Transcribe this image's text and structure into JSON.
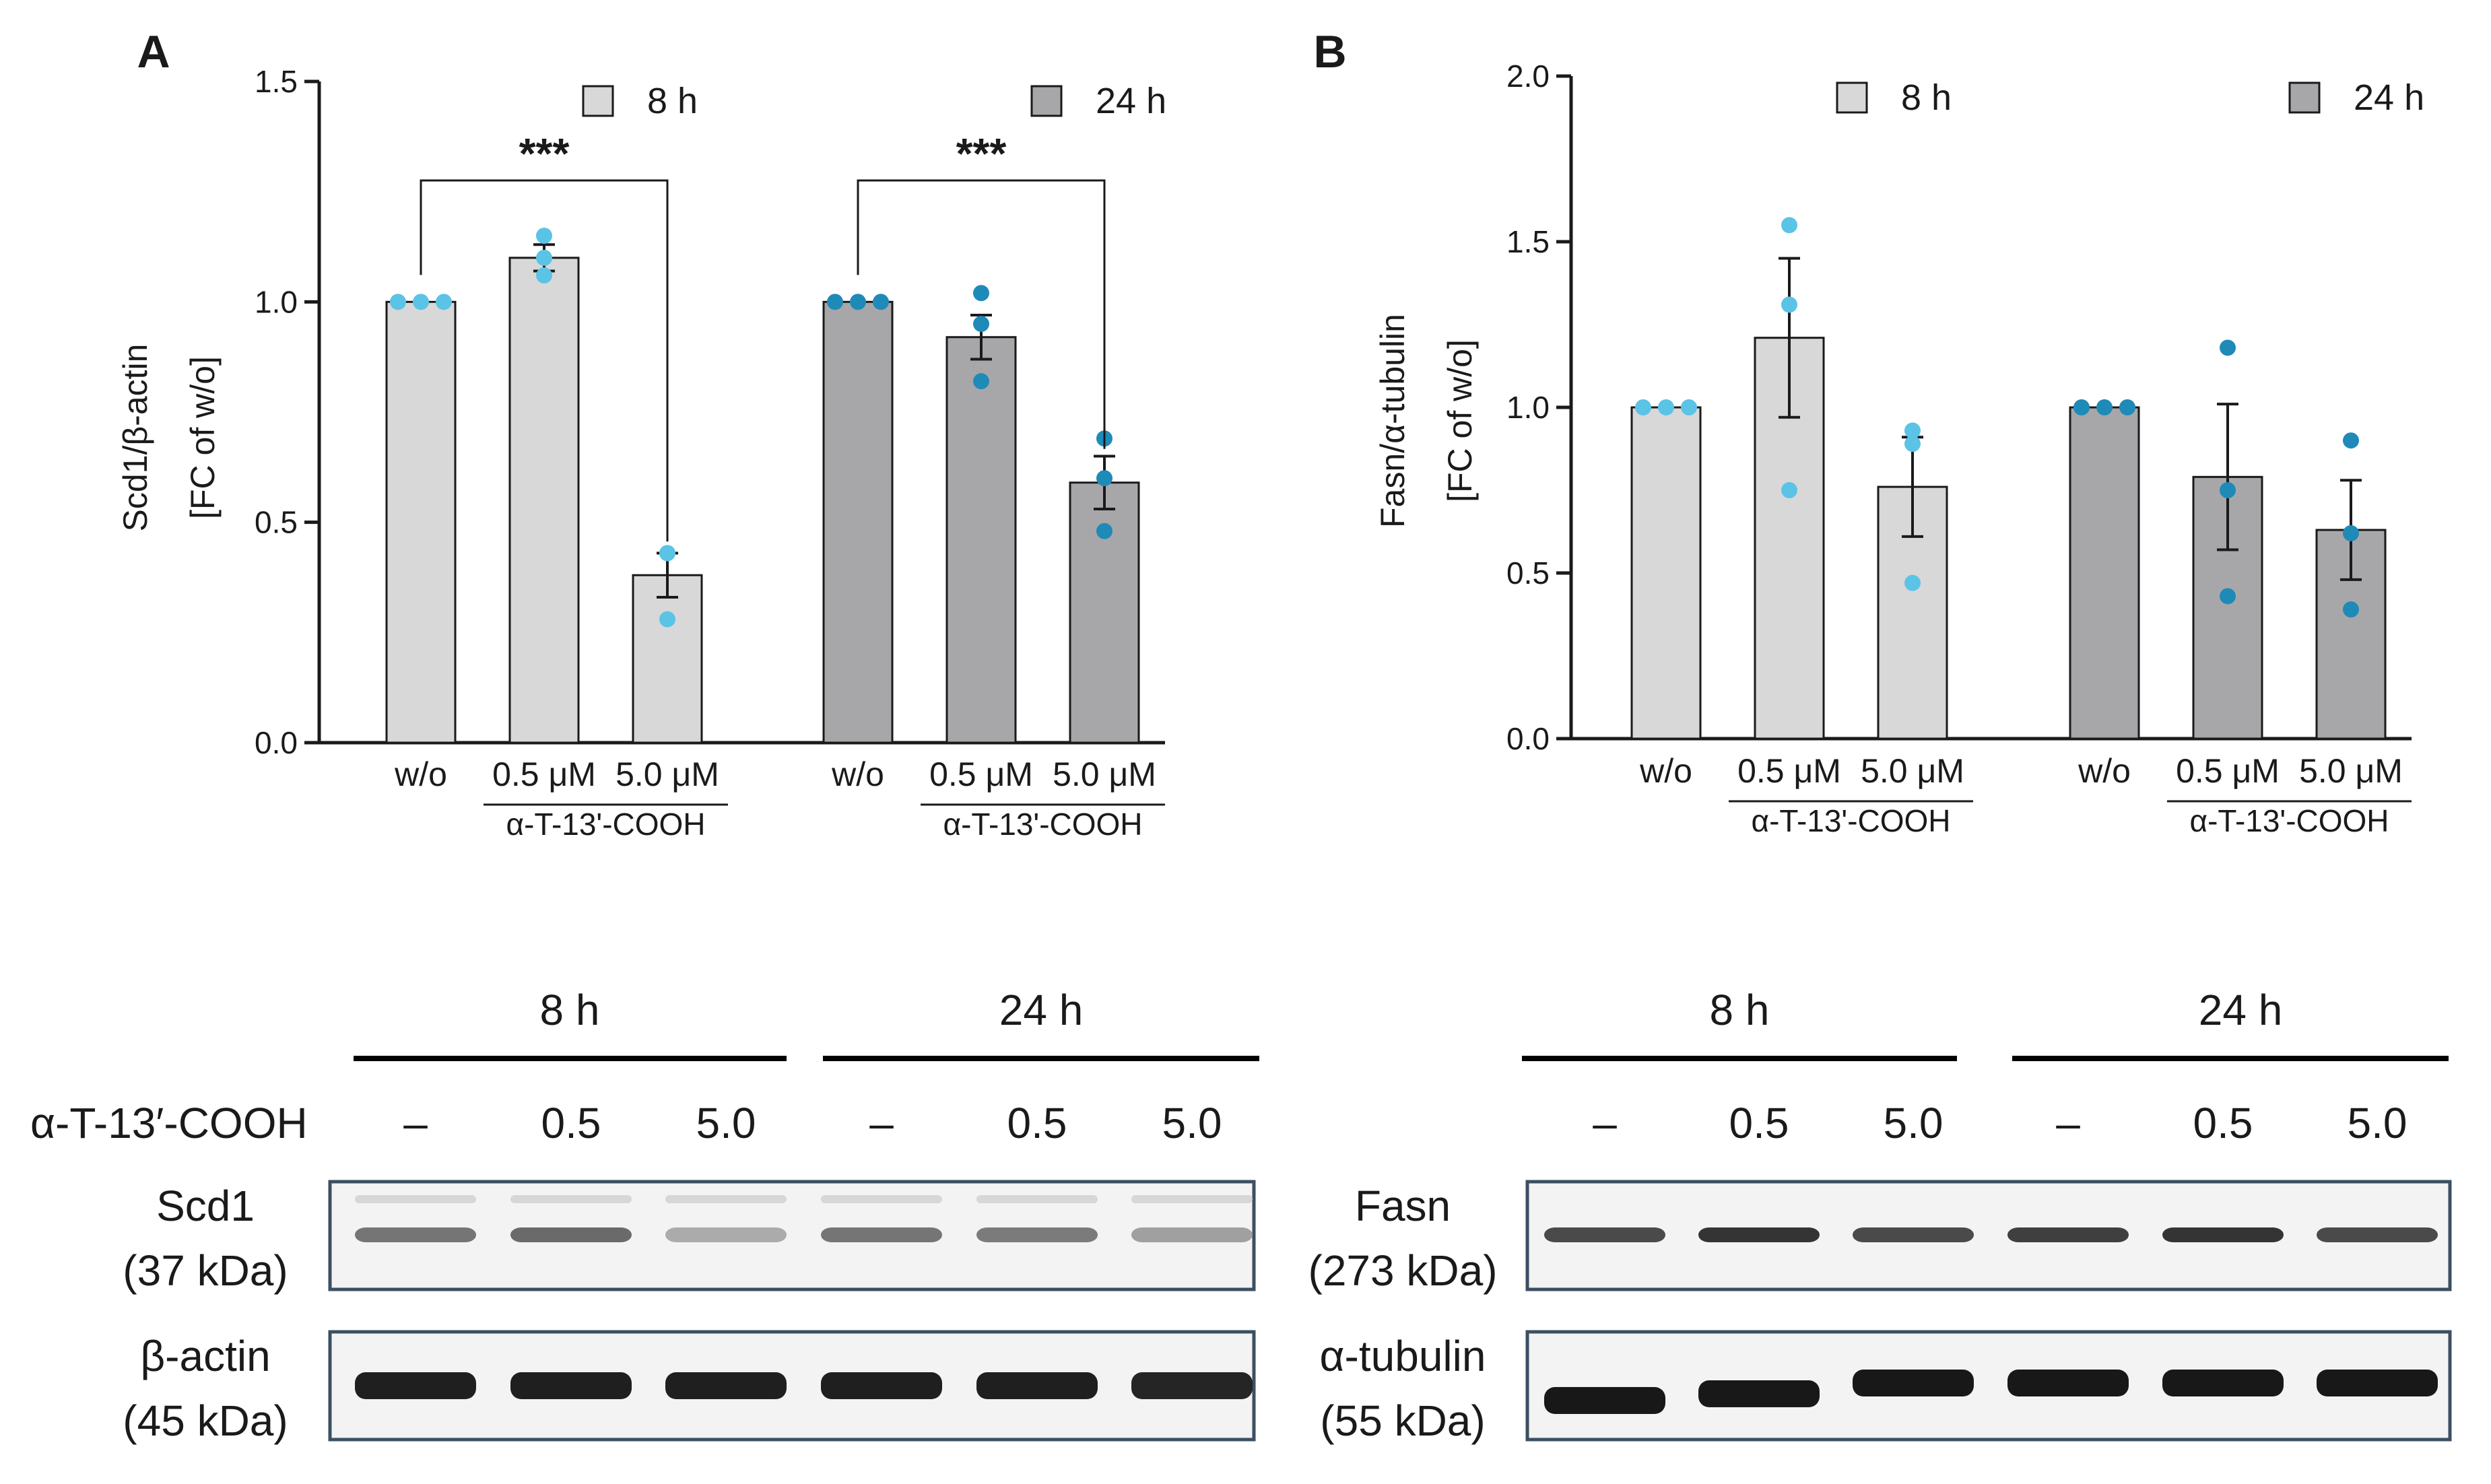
{
  "colors": {
    "bar_8h": "#d8d8d8",
    "bar_24h": "#a7a7aa",
    "dot_8h": "#5bc3e6",
    "dot_24h": "#1f8ab8",
    "axis": "#1a1a1a"
  },
  "chart_data": [
    {
      "panel": "A",
      "type": "bar",
      "ylabel": [
        "Scd1/β-actin",
        "[FC of w/o]"
      ],
      "ylim": [
        0,
        1.5
      ],
      "yticks": [
        "0.0",
        "0.5",
        "1.0",
        "1.5"
      ],
      "legend": [
        "8 h",
        "24 h"
      ],
      "categories": [
        "w/o",
        "0.5 μM",
        "5.0 μM"
      ],
      "treatment_label": "α-T-13'-COOH",
      "series": [
        {
          "name": "8 h",
          "values": [
            1.0,
            1.1,
            0.38
          ],
          "sem": [
            0.0,
            0.03,
            0.05
          ],
          "points": [
            [
              1.0,
              1.0,
              1.0
            ],
            [
              1.15,
              1.1,
              1.06
            ],
            [
              0.43,
              0.43,
              0.28
            ]
          ]
        },
        {
          "name": "24 h",
          "values": [
            1.0,
            0.92,
            0.59
          ],
          "sem": [
            0.0,
            0.05,
            0.06
          ],
          "points": [
            [
              1.0,
              1.0,
              1.0
            ],
            [
              1.02,
              0.95,
              0.82
            ],
            [
              0.69,
              0.6,
              0.48
            ]
          ]
        }
      ],
      "significance": [
        {
          "series": 0,
          "from": 0,
          "to": 2,
          "label": "***"
        },
        {
          "series": 1,
          "from": 0,
          "to": 2,
          "label": "***"
        }
      ]
    },
    {
      "panel": "B",
      "type": "bar",
      "ylabel": [
        "Fasn/α-tubulin",
        "[FC of w/o]"
      ],
      "ylim": [
        0,
        2.0
      ],
      "yticks": [
        "0.0",
        "0.5",
        "1.0",
        "1.5",
        "2.0"
      ],
      "legend": [
        "8 h",
        "24 h"
      ],
      "categories": [
        "w/o",
        "0.5 μM",
        "5.0 μM"
      ],
      "treatment_label": "α-T-13'-COOH",
      "series": [
        {
          "name": "8 h",
          "values": [
            1.0,
            1.21,
            0.76
          ],
          "sem": [
            0.0,
            0.24,
            0.15
          ],
          "points": [
            [
              1.0,
              1.0,
              1.0
            ],
            [
              1.55,
              1.31,
              0.75
            ],
            [
              0.93,
              0.89,
              0.47
            ]
          ]
        },
        {
          "name": "24 h",
          "values": [
            1.0,
            0.79,
            0.63
          ],
          "sem": [
            0.0,
            0.22,
            0.15
          ],
          "points": [
            [
              1.0,
              1.0,
              1.0
            ],
            [
              1.18,
              0.75,
              0.43
            ],
            [
              0.9,
              0.62,
              0.39
            ]
          ]
        }
      ],
      "significance": []
    }
  ],
  "blots": [
    {
      "group_headers": [
        "8 h",
        "24 h"
      ],
      "treatment_label": "α-T-13′-COOH",
      "doses": [
        "–",
        "0.5",
        "5.0",
        "–",
        "0.5",
        "5.0"
      ],
      "rows": [
        {
          "label": [
            "Scd1",
            "(37 kDa)"
          ],
          "intensity": [
            0.55,
            0.6,
            0.3,
            0.55,
            0.52,
            0.35
          ]
        },
        {
          "label": [
            "β-actin",
            "(45 kDa)"
          ],
          "intensity": [
            0.95,
            0.95,
            0.95,
            0.95,
            0.95,
            0.92
          ]
        }
      ]
    },
    {
      "group_headers": [
        "8 h",
        "24 h"
      ],
      "treatment_label": "",
      "doses": [
        "–",
        "0.5",
        "5.0",
        "–",
        "0.5",
        "5.0"
      ],
      "rows": [
        {
          "label": [
            "Fasn",
            "(273 kDa)"
          ],
          "intensity": [
            0.75,
            0.85,
            0.75,
            0.8,
            0.85,
            0.75
          ]
        },
        {
          "label": [
            "α-tubulin",
            "(55 kDa)"
          ],
          "intensity": [
            0.98,
            0.98,
            0.98,
            0.98,
            0.98,
            0.98
          ]
        }
      ]
    }
  ]
}
